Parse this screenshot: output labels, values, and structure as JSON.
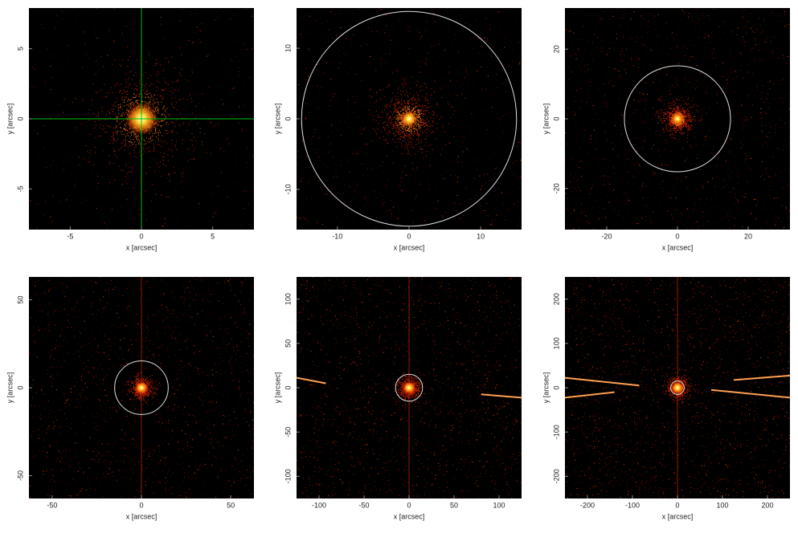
{
  "chart_data": [
    {
      "type": "image",
      "xlabel": "x [arcsec]",
      "ylabel": "y [arcsec]",
      "xlim": [
        -7.9,
        7.9
      ],
      "ylim": [
        -7.9,
        7.9
      ],
      "xticks": [
        -5,
        0,
        5
      ],
      "yticks": [
        -5,
        0,
        5
      ],
      "crosshair": {
        "x": 0,
        "y": 0,
        "color": "#00c000"
      }
    },
    {
      "type": "image",
      "xlabel": "x [arcsec]",
      "ylabel": "y [arcsec]",
      "xlim": [
        -15.7,
        15.7
      ],
      "ylim": [
        -15.7,
        15.7
      ],
      "xticks": [
        -10,
        0,
        10
      ],
      "yticks": [
        -10,
        0,
        10
      ],
      "circle_radius": 15
    },
    {
      "type": "image",
      "xlabel": "x [arcsec]",
      "ylabel": "y [arcsec]",
      "xlim": [
        -31.8,
        31.8
      ],
      "ylim": [
        -31.8,
        31.8
      ],
      "xticks": [
        -20,
        0,
        20
      ],
      "yticks": [
        -20,
        0,
        20
      ],
      "circle_radius": 15
    },
    {
      "type": "image",
      "xlabel": "x [arcsec]",
      "ylabel": "y [arcsec]",
      "xlim": [
        -63,
        63
      ],
      "ylim": [
        -63,
        63
      ],
      "xticks": [
        -50,
        0,
        50
      ],
      "yticks": [
        -50,
        0,
        50
      ],
      "circle_radius": 15
    },
    {
      "type": "image",
      "xlabel": "x [arcsec]",
      "ylabel": "y [arcsec]",
      "xlim": [
        -125,
        125
      ],
      "ylim": [
        -125,
        125
      ],
      "xticks": [
        -100,
        -50,
        0,
        50,
        100
      ],
      "yticks": [
        -100,
        -50,
        0,
        50,
        100
      ],
      "circle_radius": 15
    },
    {
      "type": "image",
      "xlabel": "x [arcsec]",
      "ylabel": "y [arcsec]",
      "xlim": [
        -250,
        250
      ],
      "ylim": [
        -250,
        250
      ],
      "xticks": [
        -200,
        -100,
        0,
        100,
        200
      ],
      "yticks": [
        -200,
        -100,
        0,
        100,
        200
      ],
      "circle_radius": 15
    }
  ]
}
